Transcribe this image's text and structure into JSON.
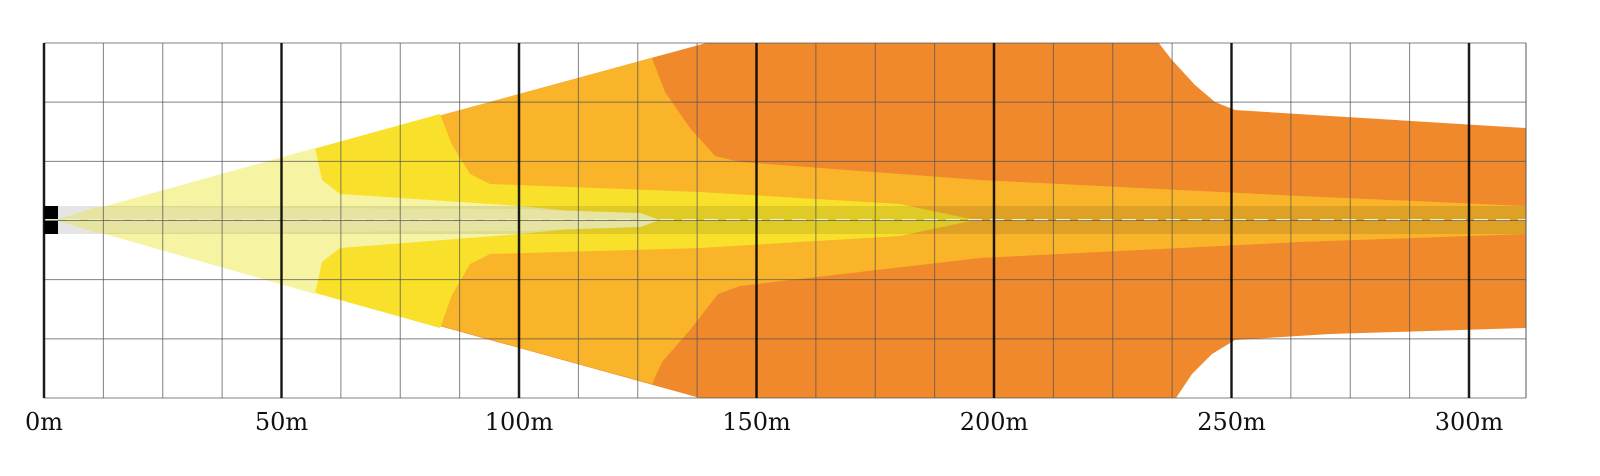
{
  "chart_data": {
    "type": "area",
    "title": "",
    "xlabel": "",
    "ylabel": "",
    "x_unit": "m",
    "xlim": [
      0,
      312
    ],
    "major_ticks": [
      0,
      50,
      100,
      150,
      200,
      250,
      300
    ],
    "minor_tick_step": 12.5,
    "tick_labels": [
      "0m",
      "50m",
      "100m",
      "150m",
      "200m",
      "250m",
      "300m"
    ],
    "grid": true,
    "colors": {
      "background": "#ffffff",
      "grid_minor": "#555555",
      "grid_major": "#000000",
      "road": "#000000",
      "center_dash": "#f2f2c8",
      "zone_outer": "#f0892b",
      "zone_upper_mid": "#f9b42a",
      "zone_mid": "#f9e12b",
      "zone_inner": "#f6f4a2",
      "spot_center": "#e6e4a0"
    }
  }
}
